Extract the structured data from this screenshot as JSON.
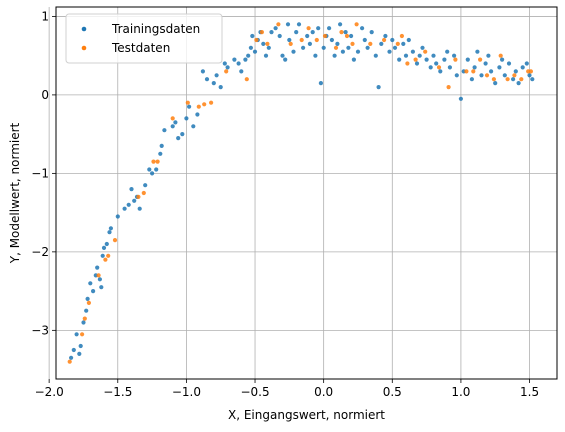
{
  "chart_data": {
    "type": "scatter",
    "title": "",
    "xlabel": "X, Eingangswert, normiert",
    "ylabel": "Y, Modellwert, normiert",
    "xlim": [
      -1.95,
      1.7
    ],
    "ylim": [
      -3.62,
      1.12
    ],
    "xticks": [
      -2.0,
      -1.5,
      -1.0,
      -0.5,
      0.0,
      0.5,
      1.0,
      1.5
    ],
    "xtick_labels": [
      "−2.0",
      "−1.5",
      "−1.0",
      "−0.5",
      "0.0",
      "0.5",
      "1.0",
      "1.5"
    ],
    "yticks": [
      -3,
      -2,
      -1,
      0,
      1
    ],
    "ytick_labels": [
      "−3",
      "−2",
      "−1",
      "0",
      "1"
    ],
    "grid": true,
    "legend_position": "top-left",
    "series": [
      {
        "name": "Trainingsdaten",
        "color": "#1f77b4",
        "points": [
          [
            -1.84,
            -3.35
          ],
          [
            -1.82,
            -3.25
          ],
          [
            -1.8,
            -3.05
          ],
          [
            -1.78,
            -3.3
          ],
          [
            -1.77,
            -3.2
          ],
          [
            -1.75,
            -2.9
          ],
          [
            -1.73,
            -2.75
          ],
          [
            -1.72,
            -2.6
          ],
          [
            -1.7,
            -2.4
          ],
          [
            -1.68,
            -2.5
          ],
          [
            -1.66,
            -2.3
          ],
          [
            -1.65,
            -2.2
          ],
          [
            -1.63,
            -2.35
          ],
          [
            -1.62,
            -2.45
          ],
          [
            -1.61,
            -2.05
          ],
          [
            -1.6,
            -1.95
          ],
          [
            -1.58,
            -1.9
          ],
          [
            -1.56,
            -1.75
          ],
          [
            -1.55,
            -1.7
          ],
          [
            -1.5,
            -1.55
          ],
          [
            -1.45,
            -1.45
          ],
          [
            -1.42,
            -1.4
          ],
          [
            -1.4,
            -1.2
          ],
          [
            -1.38,
            -1.35
          ],
          [
            -1.36,
            -1.3
          ],
          [
            -1.34,
            -1.45
          ],
          [
            -1.3,
            -1.15
          ],
          [
            -1.27,
            -0.95
          ],
          [
            -1.25,
            -1.0
          ],
          [
            -1.22,
            -0.95
          ],
          [
            -1.19,
            -0.75
          ],
          [
            -1.18,
            -0.65
          ],
          [
            -1.16,
            -0.45
          ],
          [
            -1.1,
            -0.4
          ],
          [
            -1.08,
            -0.35
          ],
          [
            -1.06,
            -0.55
          ],
          [
            -1.03,
            -0.5
          ],
          [
            -1.0,
            -0.3
          ],
          [
            -0.98,
            -0.15
          ],
          [
            -0.95,
            -0.4
          ],
          [
            -0.92,
            -0.25
          ],
          [
            -0.88,
            0.3
          ],
          [
            -0.85,
            0.2
          ],
          [
            -0.8,
            0.15
          ],
          [
            -0.78,
            0.25
          ],
          [
            -0.75,
            0.1
          ],
          [
            -0.72,
            0.4
          ],
          [
            -0.7,
            0.35
          ],
          [
            -0.65,
            0.45
          ],
          [
            -0.62,
            0.4
          ],
          [
            -0.6,
            0.3
          ],
          [
            -0.57,
            0.45
          ],
          [
            -0.55,
            0.5
          ],
          [
            -0.53,
            0.6
          ],
          [
            -0.52,
            0.75
          ],
          [
            -0.5,
            0.55
          ],
          [
            -0.48,
            0.7
          ],
          [
            -0.46,
            0.8
          ],
          [
            -0.44,
            0.65
          ],
          [
            -0.42,
            0.5
          ],
          [
            -0.4,
            0.6
          ],
          [
            -0.38,
            0.8
          ],
          [
            -0.35,
            0.85
          ],
          [
            -0.32,
            0.75
          ],
          [
            -0.3,
            0.5
          ],
          [
            -0.28,
            0.45
          ],
          [
            -0.26,
            0.9
          ],
          [
            -0.25,
            0.7
          ],
          [
            -0.22,
            0.55
          ],
          [
            -0.2,
            0.8
          ],
          [
            -0.18,
            0.9
          ],
          [
            -0.15,
            0.6
          ],
          [
            -0.12,
            0.75
          ],
          [
            -0.1,
            0.65
          ],
          [
            -0.08,
            0.8
          ],
          [
            -0.06,
            0.5
          ],
          [
            -0.04,
            0.85
          ],
          [
            -0.02,
            0.15
          ],
          [
            0.0,
            0.6
          ],
          [
            0.02,
            0.75
          ],
          [
            0.04,
            0.85
          ],
          [
            0.06,
            0.7
          ],
          [
            0.08,
            0.5
          ],
          [
            0.1,
            0.65
          ],
          [
            0.12,
            0.9
          ],
          [
            0.14,
            0.55
          ],
          [
            0.16,
            0.8
          ],
          [
            0.18,
            0.6
          ],
          [
            0.2,
            0.75
          ],
          [
            0.22,
            0.45
          ],
          [
            0.25,
            0.55
          ],
          [
            0.28,
            0.85
          ],
          [
            0.3,
            0.7
          ],
          [
            0.32,
            0.6
          ],
          [
            0.35,
            0.8
          ],
          [
            0.38,
            0.5
          ],
          [
            0.4,
            0.1
          ],
          [
            0.42,
            0.65
          ],
          [
            0.45,
            0.75
          ],
          [
            0.48,
            0.55
          ],
          [
            0.5,
            0.7
          ],
          [
            0.52,
            0.6
          ],
          [
            0.55,
            0.45
          ],
          [
            0.58,
            0.65
          ],
          [
            0.6,
            0.5
          ],
          [
            0.62,
            0.7
          ],
          [
            0.65,
            0.55
          ],
          [
            0.68,
            0.4
          ],
          [
            0.7,
            0.5
          ],
          [
            0.72,
            0.6
          ],
          [
            0.75,
            0.45
          ],
          [
            0.78,
            0.35
          ],
          [
            0.8,
            0.5
          ],
          [
            0.82,
            0.4
          ],
          [
            0.85,
            0.3
          ],
          [
            0.88,
            0.45
          ],
          [
            0.9,
            0.55
          ],
          [
            0.92,
            0.35
          ],
          [
            0.95,
            0.5
          ],
          [
            0.97,
            0.25
          ],
          [
            1.0,
            -0.05
          ],
          [
            1.02,
            0.3
          ],
          [
            1.05,
            0.45
          ],
          [
            1.08,
            0.2
          ],
          [
            1.1,
            0.35
          ],
          [
            1.12,
            0.55
          ],
          [
            1.15,
            0.25
          ],
          [
            1.18,
            0.4
          ],
          [
            1.2,
            0.5
          ],
          [
            1.22,
            0.3
          ],
          [
            1.25,
            0.15
          ],
          [
            1.28,
            0.35
          ],
          [
            1.3,
            0.45
          ],
          [
            1.32,
            0.25
          ],
          [
            1.35,
            0.4
          ],
          [
            1.38,
            0.2
          ],
          [
            1.4,
            0.3
          ],
          [
            1.42,
            0.15
          ],
          [
            1.45,
            0.35
          ],
          [
            1.48,
            0.4
          ],
          [
            1.5,
            0.25
          ],
          [
            1.52,
            0.2
          ]
        ]
      },
      {
        "name": "Testdaten",
        "color": "#ff7f0e",
        "points": [
          [
            -1.85,
            -3.4
          ],
          [
            -1.76,
            -3.05
          ],
          [
            -1.74,
            -2.85
          ],
          [
            -1.71,
            -2.65
          ],
          [
            -1.64,
            -2.3
          ],
          [
            -1.59,
            -2.1
          ],
          [
            -1.57,
            -2.05
          ],
          [
            -1.52,
            -1.85
          ],
          [
            -1.35,
            -1.3
          ],
          [
            -1.31,
            -1.25
          ],
          [
            -1.24,
            -0.85
          ],
          [
            -1.21,
            -0.85
          ],
          [
            -1.1,
            -0.3
          ],
          [
            -0.99,
            -0.1
          ],
          [
            -0.91,
            -0.15
          ],
          [
            -0.87,
            -0.12
          ],
          [
            -0.82,
            -0.1
          ],
          [
            -0.71,
            0.3
          ],
          [
            -0.56,
            0.2
          ],
          [
            -0.49,
            0.7
          ],
          [
            -0.45,
            0.8
          ],
          [
            -0.41,
            0.65
          ],
          [
            -0.33,
            0.9
          ],
          [
            -0.24,
            0.65
          ],
          [
            -0.16,
            0.7
          ],
          [
            -0.11,
            0.85
          ],
          [
            -0.05,
            0.7
          ],
          [
            0.01,
            0.75
          ],
          [
            0.09,
            0.6
          ],
          [
            0.13,
            0.8
          ],
          [
            0.17,
            0.75
          ],
          [
            0.21,
            0.65
          ],
          [
            0.24,
            0.9
          ],
          [
            0.34,
            0.65
          ],
          [
            0.44,
            0.7
          ],
          [
            0.54,
            0.65
          ],
          [
            0.57,
            0.75
          ],
          [
            0.61,
            0.4
          ],
          [
            0.67,
            0.45
          ],
          [
            0.74,
            0.55
          ],
          [
            0.84,
            0.35
          ],
          [
            0.91,
            0.1
          ],
          [
            0.96,
            0.45
          ],
          [
            1.04,
            0.3
          ],
          [
            1.09,
            0.3
          ],
          [
            1.14,
            0.45
          ],
          [
            1.19,
            0.25
          ],
          [
            1.24,
            0.2
          ],
          [
            1.29,
            0.5
          ],
          [
            1.34,
            0.2
          ],
          [
            1.39,
            0.25
          ],
          [
            1.44,
            0.2
          ],
          [
            1.49,
            0.3
          ],
          [
            1.51,
            0.3
          ]
        ]
      }
    ]
  }
}
